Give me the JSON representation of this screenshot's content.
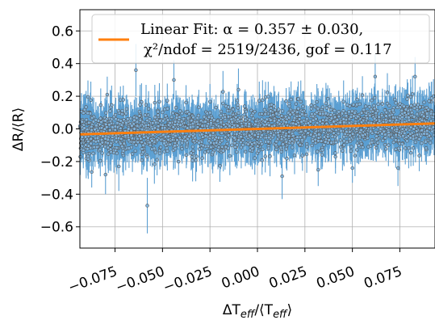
{
  "chart_data": {
    "type": "scatter",
    "xlabel": "ΔT_eff/⟨T_eff⟩",
    "ylabel": "ΔR/⟨R⟩",
    "xlim": [
      -0.0935,
      0.0935
    ],
    "ylim": [
      -0.73,
      0.73
    ],
    "x_ticks": [
      -0.075,
      -0.05,
      -0.025,
      0.0,
      0.025,
      0.05,
      0.075
    ],
    "x_tick_labels": [
      "−0.075",
      "−0.050",
      "−0.025",
      "0.000",
      "0.025",
      "0.050",
      "0.075"
    ],
    "y_ticks": [
      -0.6,
      -0.4,
      -0.2,
      0.0,
      0.2,
      0.4,
      0.6
    ],
    "y_tick_labels": [
      "−0.6",
      "−0.4",
      "−0.2",
      "0.0",
      "0.2",
      "0.4",
      "0.6"
    ],
    "grid": true,
    "legend_placement": "top",
    "colors": {
      "errorbar": "#5b9fd2",
      "marker_edge": "#555555",
      "fit": "#ff7f0e",
      "grid": "#b0b0b0"
    },
    "series": [
      {
        "kind": "errorbar-scatter",
        "n_points": 2438,
        "y_center": 0.0,
        "y_spread": 0.07,
        "yerr_typical": 0.1
      },
      {
        "kind": "line",
        "name_line1": "Linear Fit: α = 0.357 ± 0.030,",
        "name_line2": "χ²/ndof =  2519/2436, gof =  0.117",
        "x": [
          -0.0935,
          0.0935
        ],
        "y": [
          -0.0334,
          0.0334
        ],
        "slope": 0.357
      }
    ],
    "outliers": [
      {
        "x": -0.058,
        "y": -0.47,
        "yerr": 0.17
      },
      {
        "x": -0.073,
        "y": -0.23,
        "yerr": 0.15
      },
      {
        "x": -0.08,
        "y": -0.28,
        "yerr": 0.12
      },
      {
        "x": 0.013,
        "y": -0.29,
        "yerr": 0.14
      },
      {
        "x": -0.064,
        "y": 0.36,
        "yerr": 0.16
      },
      {
        "x": 0.062,
        "y": 0.32,
        "yerr": 0.14
      },
      {
        "x": 0.083,
        "y": 0.32,
        "yerr": 0.12
      },
      {
        "x": -0.044,
        "y": 0.3,
        "yerr": 0.12
      },
      {
        "x": 0.032,
        "y": -0.25,
        "yerr": 0.1
      },
      {
        "x": 0.074,
        "y": -0.24,
        "yerr": 0.11
      },
      {
        "x": -0.01,
        "y": 0.24,
        "yerr": 0.13
      },
      {
        "x": 0.05,
        "y": -0.24,
        "yerr": 0.09
      }
    ]
  }
}
